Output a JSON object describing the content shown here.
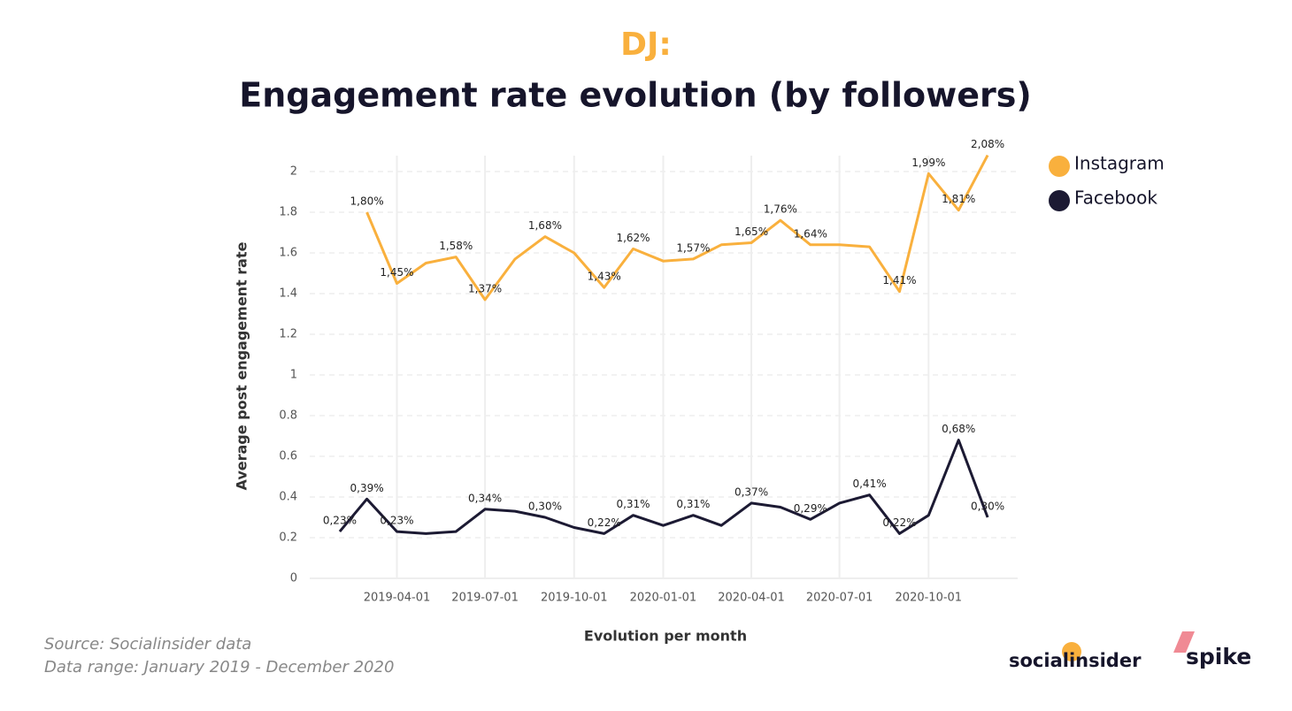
{
  "chart_data": {
    "type": "line",
    "pretitle": "DJ:",
    "title": "Engagement rate evolution (by followers)",
    "y_label": "Average post engagement rate",
    "x_label": "Evolution per month",
    "x": [
      "2019-02-01",
      "2019-03-01",
      "2019-04-01",
      "2019-05-01",
      "2019-06-01",
      "2019-07-01",
      "2019-08-01",
      "2019-09-01",
      "2019-10-01",
      "2019-11-01",
      "2019-12-01",
      "2020-01-01",
      "2020-02-01",
      "2020-03-01",
      "2020-04-01",
      "2020-05-01",
      "2020-06-01",
      "2020-07-01",
      "2020-08-01",
      "2020-09-01",
      "2020-10-01",
      "2020-11-01",
      "2020-12-01"
    ],
    "series": [
      {
        "name": "Instagram",
        "color": "#f9b03d",
        "values": [
          null,
          1.8,
          1.45,
          1.55,
          1.58,
          1.37,
          1.57,
          1.68,
          1.6,
          1.43,
          1.62,
          1.56,
          1.57,
          1.64,
          1.65,
          1.76,
          1.64,
          1.64,
          1.63,
          1.41,
          1.99,
          1.81,
          2.08
        ],
        "value_labels": [
          null,
          "1,80%",
          "1,45%",
          null,
          "1,58%",
          "1,37%",
          null,
          "1,68%",
          null,
          "1,43%",
          "1,62%",
          null,
          "1,57%",
          null,
          "1,65%",
          "1,76%",
          "1,64%",
          null,
          null,
          "1,41%",
          "1,99%",
          "1,81%",
          "2,08%"
        ]
      },
      {
        "name": "Facebook",
        "color": "#1c1a33",
        "values": [
          0.23,
          0.39,
          0.23,
          0.22,
          0.23,
          0.34,
          0.33,
          0.3,
          0.25,
          0.22,
          0.31,
          0.26,
          0.31,
          0.26,
          0.37,
          0.35,
          0.29,
          0.37,
          0.41,
          0.22,
          0.31,
          0.68,
          0.3
        ],
        "value_labels": [
          "0,23%",
          "0,39%",
          "0,23%",
          null,
          null,
          "0,34%",
          null,
          "0,30%",
          null,
          "0,22%",
          "0,31%",
          null,
          "0,31%",
          null,
          "0,37%",
          null,
          "0,29%",
          null,
          "0,41%",
          "0,22%",
          null,
          "0,68%",
          "0,30%"
        ]
      }
    ],
    "xlim": [
      "2019-01-01",
      "2021-01-01"
    ],
    "xticks": [
      "2019-04-01",
      "2019-07-01",
      "2019-10-01",
      "2020-01-01",
      "2020-04-01",
      "2020-07-01",
      "2020-10-01"
    ],
    "ylim": [
      0,
      2.0
    ],
    "yticks": [
      0,
      0.2,
      0.4,
      0.6,
      0.8,
      1,
      1.2,
      1.4,
      1.6,
      1.8,
      2
    ],
    "grid": true,
    "legend": "right"
  },
  "footer": {
    "source": "Source: Socialinsider data",
    "range": "Data range: January 2019 - December 2020",
    "logo1": "socialinsider",
    "logo2": "spike"
  }
}
